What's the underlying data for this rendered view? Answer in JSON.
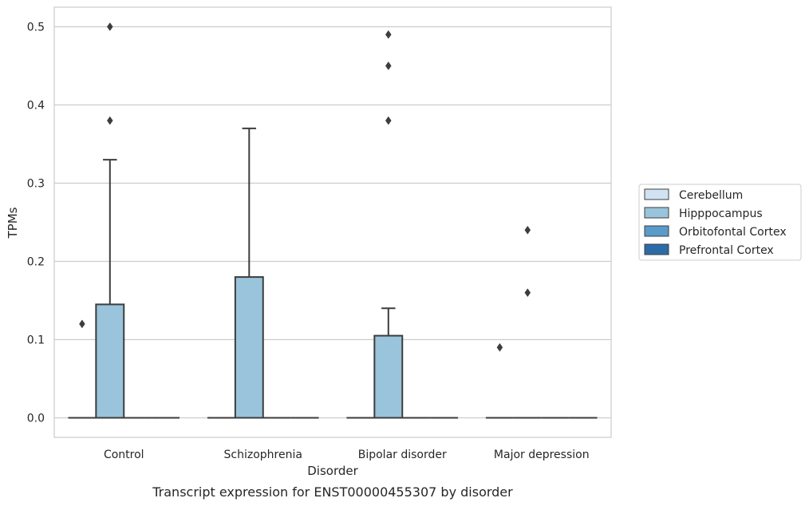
{
  "chart_data": {
    "type": "box",
    "caption": "Transcript expression for ENST00000455307 by disorder",
    "xlabel": "Disorder",
    "ylabel": "TPMs",
    "ylim": [
      -0.025,
      0.525
    ],
    "yticks": [
      "0.0",
      "0.1",
      "0.2",
      "0.3",
      "0.4",
      "0.5"
    ],
    "ytick_values": [
      0.0,
      0.1,
      0.2,
      0.3,
      0.4,
      0.5
    ],
    "grid": true,
    "legend_position": "right",
    "categories": [
      "Control",
      "Schizophrenia",
      "Bipolar disorder",
      "Major depression"
    ],
    "series": [
      {
        "name": "Cerebellum",
        "color": "#d1e2f2",
        "boxes": [
          {
            "min": 0,
            "q1": 0,
            "median": 0,
            "q3": 0,
            "max": 0,
            "outliers": [
              0.12
            ]
          },
          {
            "min": 0,
            "q1": 0,
            "median": 0,
            "q3": 0,
            "max": 0,
            "outliers": []
          },
          {
            "min": 0,
            "q1": 0,
            "median": 0,
            "q3": 0,
            "max": 0,
            "outliers": []
          },
          {
            "min": 0,
            "q1": 0,
            "median": 0,
            "q3": 0,
            "max": 0,
            "outliers": [
              0.09
            ]
          }
        ]
      },
      {
        "name": "Hipppocampus",
        "color": "#9ac3dc",
        "boxes": [
          {
            "min": 0,
            "q1": 0,
            "median": 0,
            "q3": 0.145,
            "max": 0.33,
            "outliers": [
              0.38,
              0.5
            ]
          },
          {
            "min": 0,
            "q1": 0,
            "median": 0,
            "q3": 0.18,
            "max": 0.37,
            "outliers": []
          },
          {
            "min": 0,
            "q1": 0,
            "median": 0,
            "q3": 0.105,
            "max": 0.14,
            "outliers": [
              0.38,
              0.45,
              0.49
            ]
          },
          {
            "min": 0,
            "q1": 0,
            "median": 0,
            "q3": 0,
            "max": 0,
            "outliers": [
              0.16,
              0.24
            ]
          }
        ]
      },
      {
        "name": "Orbitofontal Cortex",
        "color": "#5a9bc9",
        "boxes": [
          {
            "min": 0,
            "q1": 0,
            "median": 0,
            "q3": 0,
            "max": 0,
            "outliers": []
          },
          {
            "min": 0,
            "q1": 0,
            "median": 0,
            "q3": 0,
            "max": 0,
            "outliers": []
          },
          {
            "min": 0,
            "q1": 0,
            "median": 0,
            "q3": 0,
            "max": 0,
            "outliers": []
          },
          {
            "min": 0,
            "q1": 0,
            "median": 0,
            "q3": 0,
            "max": 0,
            "outliers": []
          }
        ]
      },
      {
        "name": "Prefrontal Cortex",
        "color": "#2b6ca8",
        "boxes": [
          {
            "min": 0,
            "q1": 0,
            "median": 0,
            "q3": 0,
            "max": 0,
            "outliers": []
          },
          {
            "min": 0,
            "q1": 0,
            "median": 0,
            "q3": 0,
            "max": 0,
            "outliers": []
          },
          {
            "min": 0,
            "q1": 0,
            "median": 0,
            "q3": 0,
            "max": 0,
            "outliers": []
          },
          {
            "min": 0,
            "q1": 0,
            "median": 0,
            "q3": 0,
            "max": 0,
            "outliers": []
          }
        ]
      }
    ]
  }
}
